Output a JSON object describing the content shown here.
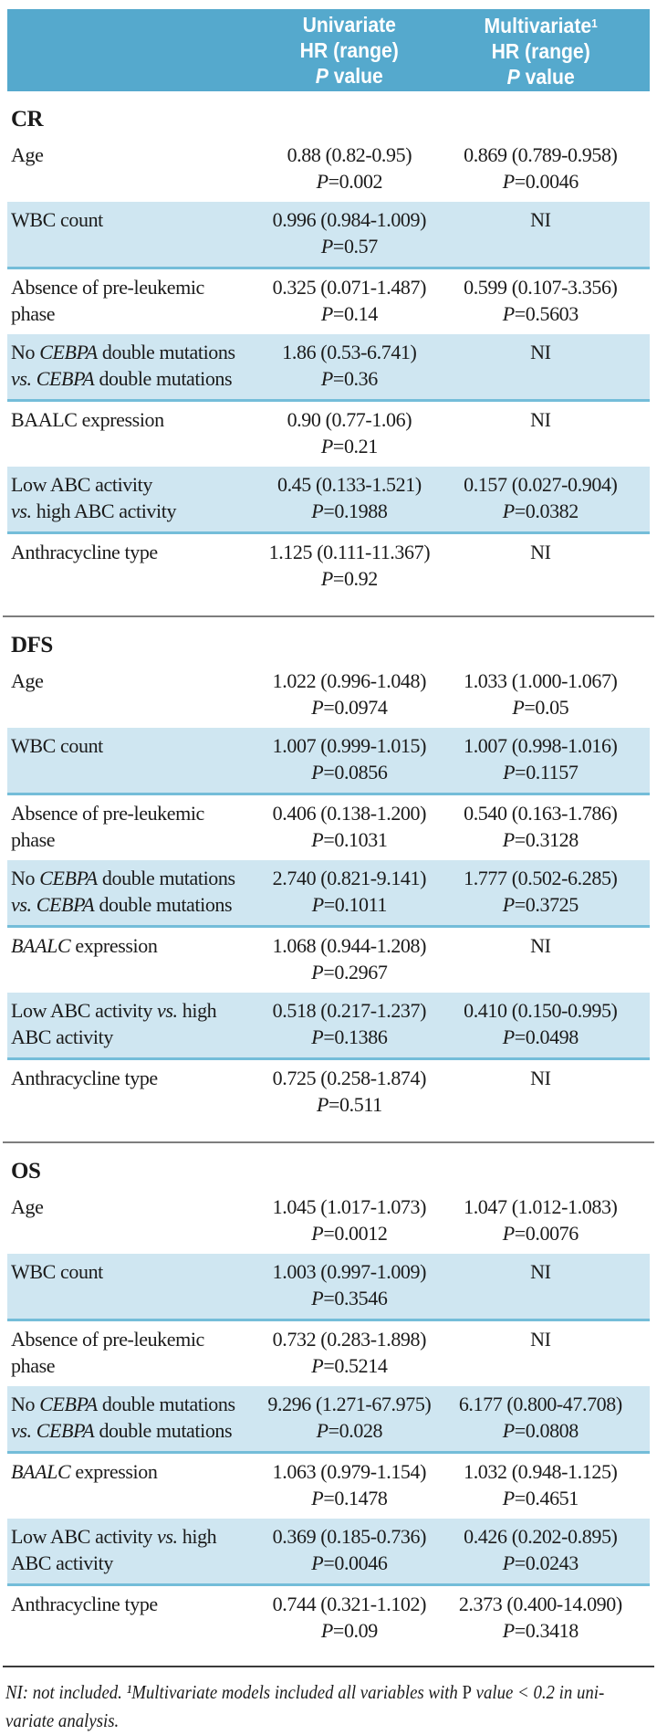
{
  "colors": {
    "header_bg": "#55a9cd",
    "row_highlight": "#cfe6f1",
    "row_border": "#74bdd9",
    "header_text": "#ffffff",
    "body_text": "#1b1b1b"
  },
  "strings": {
    "p_label": "P",
    "equals": "=",
    "value_word": "value",
    "hr_range_word": "HR (range)"
  },
  "header": {
    "univariate": {
      "line1": "Univariate",
      "line2": "HR (range)",
      "line3_p": "P",
      "line3_word": "value"
    },
    "multivariate": {
      "line1": "Multivariate",
      "sup": "1",
      "line2": "HR (range)",
      "line3_p": "P",
      "line3_word": "value"
    }
  },
  "sections": [
    {
      "title": "CR",
      "rows": [
        {
          "highlight": false,
          "label_lines": [
            [
              {
                "t": "Age"
              }
            ]
          ],
          "uni": {
            "hr": "0.88 (0.82-0.95)",
            "p": "0.002"
          },
          "multi": {
            "hr": "0.869 (0.789-0.958)",
            "p": "0.0046"
          }
        },
        {
          "highlight": true,
          "label_lines": [
            [
              {
                "t": "WBC count"
              }
            ]
          ],
          "uni": {
            "hr": "0.996 (0.984-1.009)",
            "p": "0.57"
          },
          "multi": {
            "ni": "NI"
          }
        },
        {
          "highlight": false,
          "label_lines": [
            [
              {
                "t": "Absence of pre-leukemic"
              }
            ],
            [
              {
                "t": "phase"
              }
            ]
          ],
          "uni": {
            "hr": "0.325 (0.071-1.487)",
            "p": "0.14"
          },
          "multi": {
            "hr": "0.599 (0.107-3.356)",
            "p": "0.5603"
          }
        },
        {
          "highlight": true,
          "label_lines": [
            [
              {
                "t": "No "
              },
              {
                "t": "CEBPA",
                "i": true
              },
              {
                "t": " double mutations"
              }
            ],
            [
              {
                "t": "vs.",
                "i": true
              },
              {
                "t": " "
              },
              {
                "t": "CEBPA",
                "i": true
              },
              {
                "t": " double mutations"
              }
            ]
          ],
          "uni": {
            "hr": "1.86 (0.53-6.741)",
            "p": "0.36"
          },
          "multi": {
            "ni": "NI"
          }
        },
        {
          "highlight": false,
          "label_lines": [
            [
              {
                "t": "BAALC expression"
              }
            ]
          ],
          "uni": {
            "hr": "0.90 (0.77-1.06)",
            "p": "0.21"
          },
          "multi": {
            "ni": "NI"
          }
        },
        {
          "highlight": true,
          "label_lines": [
            [
              {
                "t": "Low ABC activity"
              }
            ],
            [
              {
                "t": "vs.",
                "i": true
              },
              {
                "t": " high ABC activity"
              }
            ]
          ],
          "uni": {
            "hr": "0.45 (0.133-1.521)",
            "p": "0.1988"
          },
          "multi": {
            "hr": "0.157 (0.027-0.904)",
            "p": "0.0382"
          }
        },
        {
          "highlight": false,
          "label_lines": [
            [
              {
                "t": "Anthracycline type"
              }
            ]
          ],
          "uni": {
            "hr": "1.125 (0.111-11.367)",
            "p": "0.92"
          },
          "multi": {
            "ni": "NI"
          }
        }
      ]
    },
    {
      "title": "DFS",
      "rows": [
        {
          "highlight": false,
          "label_lines": [
            [
              {
                "t": "Age"
              }
            ]
          ],
          "uni": {
            "hr": "1.022 (0.996-1.048)",
            "p": "0.0974"
          },
          "multi": {
            "hr": "1.033 (1.000-1.067)",
            "p": "0.05"
          }
        },
        {
          "highlight": true,
          "label_lines": [
            [
              {
                "t": "WBC count"
              }
            ]
          ],
          "uni": {
            "hr": "1.007 (0.999-1.015)",
            "p": "0.0856"
          },
          "multi": {
            "hr": "1.007 (0.998-1.016)",
            "p": "0.1157"
          }
        },
        {
          "highlight": false,
          "label_lines": [
            [
              {
                "t": "Absence of pre-leukemic"
              }
            ],
            [
              {
                "t": "phase"
              }
            ]
          ],
          "uni": {
            "hr": "0.406 (0.138-1.200)",
            "p": "0.1031"
          },
          "multi": {
            "hr": "0.540 (0.163-1.786)",
            "p": "0.3128"
          }
        },
        {
          "highlight": true,
          "label_lines": [
            [
              {
                "t": "No "
              },
              {
                "t": "CEBPA",
                "i": true
              },
              {
                "t": " double mutations"
              }
            ],
            [
              {
                "t": "vs.",
                "i": true
              },
              {
                "t": " "
              },
              {
                "t": "CEBPA",
                "i": true
              },
              {
                "t": " double mutations"
              }
            ]
          ],
          "uni": {
            "hr": "2.740 (0.821-9.141)",
            "p": "0.1011"
          },
          "multi": {
            "hr": "1.777 (0.502-6.285)",
            "p": "0.3725"
          }
        },
        {
          "highlight": false,
          "label_lines": [
            [
              {
                "t": "BAALC",
                "i": true
              },
              {
                "t": " expression"
              }
            ]
          ],
          "uni": {
            "hr": "1.068 (0.944-1.208)",
            "p": "0.2967"
          },
          "multi": {
            "ni": "NI"
          }
        },
        {
          "highlight": true,
          "label_lines": [
            [
              {
                "t": "Low ABC activity "
              },
              {
                "t": "vs.",
                "i": true
              },
              {
                "t": " high"
              }
            ],
            [
              {
                "t": "ABC activity"
              }
            ]
          ],
          "uni": {
            "hr": "0.518 (0.217-1.237)",
            "p": "0.1386"
          },
          "multi": {
            "hr": "0.410 (0.150-0.995)",
            "p": "0.0498"
          }
        },
        {
          "highlight": false,
          "label_lines": [
            [
              {
                "t": "Anthracycline type"
              }
            ]
          ],
          "uni": {
            "hr": "0.725 (0.258-1.874)",
            "p": "0.511"
          },
          "multi": {
            "ni": "NI"
          }
        }
      ]
    },
    {
      "title": "OS",
      "rows": [
        {
          "highlight": false,
          "label_lines": [
            [
              {
                "t": "Age"
              }
            ]
          ],
          "uni": {
            "hr": "1.045 (1.017-1.073)",
            "p": "0.0012"
          },
          "multi": {
            "hr": "1.047 (1.012-1.083)",
            "p": "0.0076"
          }
        },
        {
          "highlight": true,
          "label_lines": [
            [
              {
                "t": "WBC count"
              }
            ]
          ],
          "uni": {
            "hr": "1.003 (0.997-1.009)",
            "p": "0.3546"
          },
          "multi": {
            "ni": "NI"
          }
        },
        {
          "highlight": false,
          "label_lines": [
            [
              {
                "t": "Absence of pre-leukemic"
              }
            ],
            [
              {
                "t": "phase"
              }
            ]
          ],
          "uni": {
            "hr": "0.732 (0.283-1.898)",
            "p": "0.5214"
          },
          "multi": {
            "ni": "NI"
          }
        },
        {
          "highlight": true,
          "label_lines": [
            [
              {
                "t": "No "
              },
              {
                "t": "CEBPA",
                "i": true
              },
              {
                "t": " double mutations"
              }
            ],
            [
              {
                "t": "vs.",
                "i": true
              },
              {
                "t": " "
              },
              {
                "t": "CEBPA",
                "i": true
              },
              {
                "t": " double mutations"
              }
            ]
          ],
          "uni": {
            "hr": "9.296 (1.271-67.975)",
            "p": "0.028"
          },
          "multi": {
            "hr": "6.177 (0.800-47.708)",
            "p": "0.0808"
          }
        },
        {
          "highlight": false,
          "label_lines": [
            [
              {
                "t": "BAALC",
                "i": true
              },
              {
                "t": " expression"
              }
            ]
          ],
          "uni": {
            "hr": "1.063 (0.979-1.154)",
            "p": "0.1478"
          },
          "multi": {
            "hr": "1.032 (0.948-1.125)",
            "p": "0.4651"
          }
        },
        {
          "highlight": true,
          "label_lines": [
            [
              {
                "t": "Low ABC activity "
              },
              {
                "t": "vs.",
                "i": true
              },
              {
                "t": " high"
              }
            ],
            [
              {
                "t": "ABC activity"
              }
            ]
          ],
          "uni": {
            "hr": "0.369 (0.185-0.736)",
            "p": "0.0046"
          },
          "multi": {
            "hr": "0.426 (0.202-0.895)",
            "p": "0.0243"
          }
        },
        {
          "highlight": false,
          "label_lines": [
            [
              {
                "t": "Anthracycline type"
              }
            ]
          ],
          "uni": {
            "hr": "0.744 (0.321-1.102)",
            "p": "0.09"
          },
          "multi": {
            "hr": "2.373 (0.400-14.090)",
            "p": "0.3418"
          }
        }
      ]
    }
  ],
  "footnote": {
    "lines": [
      [
        {
          "t": "NI: not included. ¹Multivariate models included all variables with ",
          "i": true
        },
        {
          "t": "P",
          "i": false
        },
        {
          "t": " value < 0.2 in uni-",
          "i": true
        }
      ],
      [
        {
          "t": "variate analysis.",
          "i": true
        }
      ]
    ]
  }
}
